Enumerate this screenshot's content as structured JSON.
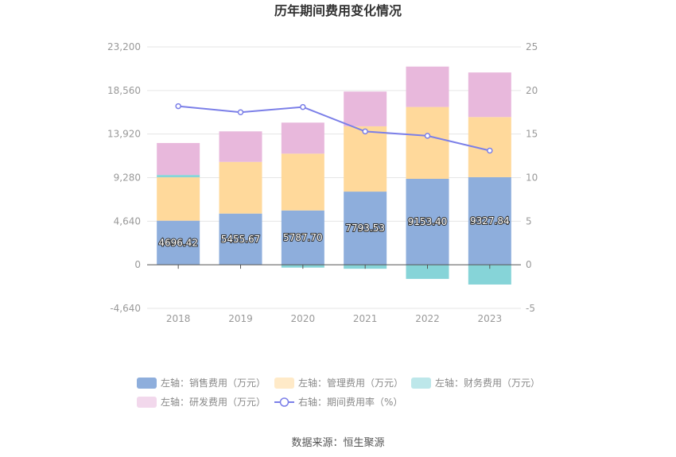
{
  "chart_data": {
    "type": "bar",
    "title": "历年期间费用变化情况",
    "categories": [
      "2018",
      "2019",
      "2020",
      "2021",
      "2022",
      "2023"
    ],
    "left_axis": {
      "ylim": [
        -4640,
        23200
      ],
      "ticks": [
        "23,200",
        "18,560",
        "13,920",
        "9,280",
        "4,640",
        "0",
        "-4,640"
      ]
    },
    "right_axis": {
      "ylim": [
        -5,
        25
      ],
      "ticks": [
        "25",
        "20",
        "15",
        "10",
        "5",
        "0",
        "-5"
      ]
    },
    "series": [
      {
        "name": "左轴：销售费用（万元）",
        "type": "bar",
        "axis": "left",
        "color": "#8eaedc",
        "values": [
          4696.42,
          5455.67,
          5787.7,
          7793.53,
          9153.4,
          9327.84
        ],
        "labels": [
          "4696.42",
          "5455.67",
          "5787.70",
          "7793.53",
          "9153.40",
          "9327.84"
        ]
      },
      {
        "name": "左轴：管理费用（万元）",
        "type": "bar",
        "axis": "left",
        "color": "#ffd99b",
        "values": [
          4620,
          5500,
          6050,
          6950,
          7650,
          6400
        ]
      },
      {
        "name": "左轴：财务费用（万元）",
        "type": "bar",
        "axis": "left",
        "color": "#86d4d8",
        "values": [
          250,
          0,
          -300,
          -420,
          -1500,
          -2100
        ]
      },
      {
        "name": "左轴：研发费用（万元）",
        "type": "bar",
        "axis": "left",
        "color": "#e8b8dc",
        "values": [
          3400,
          3250,
          3300,
          3700,
          4300,
          4750
        ]
      },
      {
        "name": "右轴：期间费用率（%）",
        "type": "line",
        "axis": "right",
        "color": "#7b7fe8",
        "values": [
          18.2,
          17.5,
          18.1,
          15.3,
          14.8,
          13.1
        ]
      }
    ],
    "grid": true,
    "legend_position": "bottom"
  },
  "source_text": "数据来源：恒生聚源"
}
